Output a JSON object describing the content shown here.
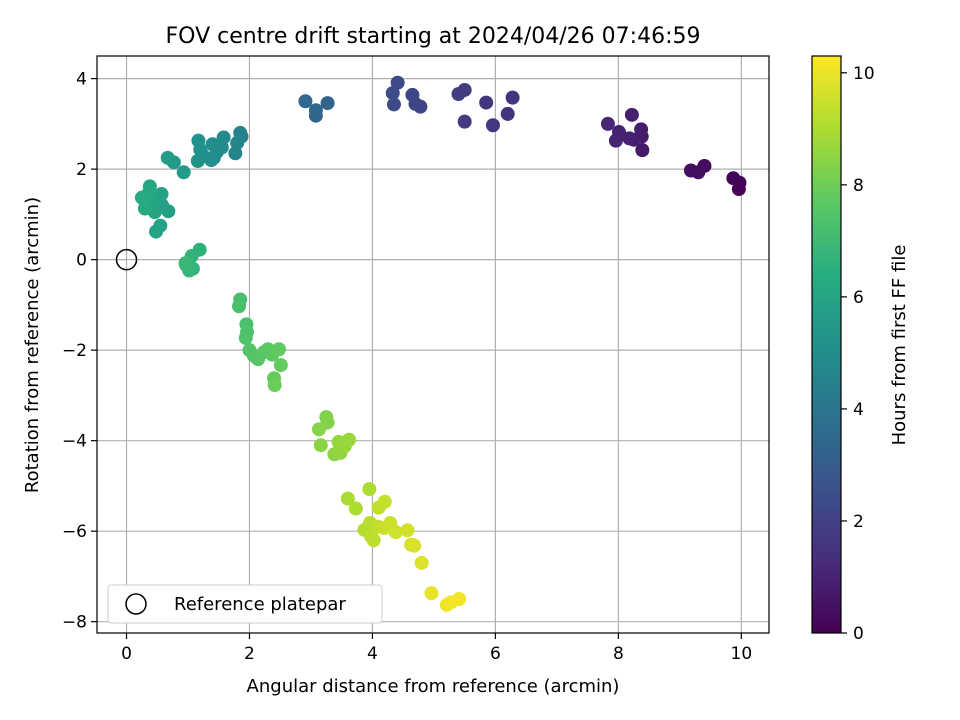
{
  "chart_data": {
    "type": "scatter",
    "title": "FOV centre drift starting at 2024/04/26 07:46:59",
    "xlabel": "Angular distance from reference (arcmin)",
    "ylabel": "Rotation from reference (arcmin)",
    "xlim": [
      -0.48,
      10.45
    ],
    "ylim": [
      -8.25,
      4.5
    ],
    "xticks": [
      0,
      2,
      4,
      6,
      8,
      10
    ],
    "xtick_labels": [
      "0",
      "2",
      "4",
      "6",
      "8",
      "10"
    ],
    "yticks": [
      4,
      2,
      0,
      -2,
      -4,
      -6,
      -8
    ],
    "ytick_labels": [
      "4",
      "2",
      "0",
      "−2",
      "−4",
      "−6",
      "−8"
    ],
    "grid": true,
    "legend": {
      "placement": "lower-left",
      "entries": [
        "Reference platepar"
      ]
    },
    "reference_point": {
      "x": 0,
      "y": 0
    },
    "colorbar": {
      "label": "Hours from first FF file",
      "min": 0,
      "max": 10.3,
      "ticks": [
        0,
        2,
        4,
        6,
        8,
        10
      ],
      "tick_labels": [
        "0",
        "2",
        "4",
        "6",
        "8",
        "10"
      ],
      "colormap": "viridis"
    },
    "series": [
      {
        "color_by": "hours",
        "points": [
          {
            "x": 9.96,
            "y": 1.56,
            "h": 0.05
          },
          {
            "x": 9.97,
            "y": 1.7,
            "h": 0.1
          },
          {
            "x": 9.87,
            "y": 1.8,
            "h": 0.15
          },
          {
            "x": 9.4,
            "y": 2.07,
            "h": 0.3
          },
          {
            "x": 9.3,
            "y": 1.93,
            "h": 0.35
          },
          {
            "x": 9.18,
            "y": 1.97,
            "h": 0.4
          },
          {
            "x": 8.39,
            "y": 2.42,
            "h": 0.7
          },
          {
            "x": 8.38,
            "y": 2.72,
            "h": 0.75
          },
          {
            "x": 8.37,
            "y": 2.88,
            "h": 0.8
          },
          {
            "x": 8.25,
            "y": 2.65,
            "h": 0.85
          },
          {
            "x": 8.22,
            "y": 3.2,
            "h": 0.9
          },
          {
            "x": 8.18,
            "y": 2.68,
            "h": 0.95
          },
          {
            "x": 8.01,
            "y": 2.82,
            "h": 1.0
          },
          {
            "x": 7.96,
            "y": 2.63,
            "h": 1.05
          },
          {
            "x": 7.83,
            "y": 3.0,
            "h": 1.1
          },
          {
            "x": 6.28,
            "y": 3.58,
            "h": 1.5
          },
          {
            "x": 6.2,
            "y": 3.22,
            "h": 1.55
          },
          {
            "x": 5.96,
            "y": 2.97,
            "h": 1.6
          },
          {
            "x": 5.85,
            "y": 3.47,
            "h": 1.65
          },
          {
            "x": 5.5,
            "y": 3.05,
            "h": 1.75
          },
          {
            "x": 5.5,
            "y": 3.75,
            "h": 1.8
          },
          {
            "x": 5.4,
            "y": 3.66,
            "h": 1.85
          },
          {
            "x": 4.78,
            "y": 3.38,
            "h": 2.1
          },
          {
            "x": 4.7,
            "y": 3.44,
            "h": 2.15
          },
          {
            "x": 4.65,
            "y": 3.64,
            "h": 2.2
          },
          {
            "x": 4.41,
            "y": 3.91,
            "h": 2.3
          },
          {
            "x": 4.35,
            "y": 3.43,
            "h": 2.35
          },
          {
            "x": 4.33,
            "y": 3.68,
            "h": 2.4
          },
          {
            "x": 3.27,
            "y": 3.46,
            "h": 3.3
          },
          {
            "x": 3.08,
            "y": 3.3,
            "h": 3.35
          },
          {
            "x": 3.08,
            "y": 3.18,
            "h": 3.4
          },
          {
            "x": 2.91,
            "y": 3.5,
            "h": 3.45
          },
          {
            "x": 1.87,
            "y": 2.72,
            "h": 4.5
          },
          {
            "x": 1.85,
            "y": 2.8,
            "h": 4.55
          },
          {
            "x": 1.8,
            "y": 2.58,
            "h": 4.6
          },
          {
            "x": 1.77,
            "y": 2.35,
            "h": 4.65
          },
          {
            "x": 1.58,
            "y": 2.7,
            "h": 4.8
          },
          {
            "x": 1.55,
            "y": 2.48,
            "h": 4.85
          },
          {
            "x": 1.47,
            "y": 2.38,
            "h": 4.9
          },
          {
            "x": 1.42,
            "y": 2.25,
            "h": 4.95
          },
          {
            "x": 1.4,
            "y": 2.55,
            "h": 5.0
          },
          {
            "x": 1.38,
            "y": 2.2,
            "h": 5.05
          },
          {
            "x": 1.25,
            "y": 2.3,
            "h": 5.1
          },
          {
            "x": 1.2,
            "y": 2.43,
            "h": 5.15
          },
          {
            "x": 1.17,
            "y": 2.63,
            "h": 5.2
          },
          {
            "x": 1.16,
            "y": 2.18,
            "h": 5.25
          },
          {
            "x": 0.93,
            "y": 1.93,
            "h": 5.5
          },
          {
            "x": 0.77,
            "y": 2.15,
            "h": 5.6
          },
          {
            "x": 0.67,
            "y": 2.25,
            "h": 5.65
          },
          {
            "x": 0.68,
            "y": 1.07,
            "h": 5.75
          },
          {
            "x": 0.58,
            "y": 1.2,
            "h": 5.8
          },
          {
            "x": 0.57,
            "y": 1.45,
            "h": 5.85
          },
          {
            "x": 0.55,
            "y": 0.75,
            "h": 5.9
          },
          {
            "x": 0.48,
            "y": 0.62,
            "h": 5.95
          },
          {
            "x": 0.46,
            "y": 1.05,
            "h": 6.0
          },
          {
            "x": 0.42,
            "y": 1.27,
            "h": 6.05
          },
          {
            "x": 0.38,
            "y": 1.62,
            "h": 6.1
          },
          {
            "x": 0.36,
            "y": 1.47,
            "h": 6.15
          },
          {
            "x": 0.3,
            "y": 1.13,
            "h": 6.2
          },
          {
            "x": 0.25,
            "y": 1.37,
            "h": 6.25
          },
          {
            "x": 1.19,
            "y": 0.22,
            "h": 6.6
          },
          {
            "x": 1.06,
            "y": 0.08,
            "h": 6.65
          },
          {
            "x": 1.08,
            "y": -0.2,
            "h": 6.7
          },
          {
            "x": 1.02,
            "y": -0.24,
            "h": 6.75
          },
          {
            "x": 0.97,
            "y": -0.12,
            "h": 6.8
          },
          {
            "x": 0.96,
            "y": -0.08,
            "h": 6.85
          },
          {
            "x": 1.85,
            "y": -0.88,
            "h": 7.2
          },
          {
            "x": 1.83,
            "y": -1.03,
            "h": 7.25
          },
          {
            "x": 1.95,
            "y": -1.43,
            "h": 7.3
          },
          {
            "x": 1.96,
            "y": -1.6,
            "h": 7.35
          },
          {
            "x": 1.94,
            "y": -1.73,
            "h": 7.4
          },
          {
            "x": 2.0,
            "y": -2.0,
            "h": 7.45
          },
          {
            "x": 2.07,
            "y": -2.12,
            "h": 7.5
          },
          {
            "x": 2.14,
            "y": -2.2,
            "h": 7.55
          },
          {
            "x": 2.23,
            "y": -2.05,
            "h": 7.6
          },
          {
            "x": 2.3,
            "y": -1.98,
            "h": 7.65
          },
          {
            "x": 2.37,
            "y": -2.1,
            "h": 7.7
          },
          {
            "x": 2.48,
            "y": -1.98,
            "h": 7.75
          },
          {
            "x": 2.51,
            "y": -2.33,
            "h": 7.8
          },
          {
            "x": 2.4,
            "y": -2.62,
            "h": 7.85
          },
          {
            "x": 2.41,
            "y": -2.77,
            "h": 7.9
          },
          {
            "x": 3.25,
            "y": -3.48,
            "h": 8.3
          },
          {
            "x": 3.27,
            "y": -3.6,
            "h": 8.35
          },
          {
            "x": 3.13,
            "y": -3.75,
            "h": 8.4
          },
          {
            "x": 3.16,
            "y": -4.1,
            "h": 8.45
          },
          {
            "x": 3.38,
            "y": -4.3,
            "h": 8.5
          },
          {
            "x": 3.48,
            "y": -4.27,
            "h": 8.55
          },
          {
            "x": 3.45,
            "y": -4.03,
            "h": 8.6
          },
          {
            "x": 3.55,
            "y": -4.12,
            "h": 8.65
          },
          {
            "x": 3.62,
            "y": -3.98,
            "h": 8.7
          },
          {
            "x": 3.6,
            "y": -5.28,
            "h": 8.95
          },
          {
            "x": 3.73,
            "y": -5.5,
            "h": 9.0
          },
          {
            "x": 3.95,
            "y": -5.07,
            "h": 9.05
          },
          {
            "x": 3.87,
            "y": -5.97,
            "h": 9.1
          },
          {
            "x": 3.96,
            "y": -5.82,
            "h": 9.15
          },
          {
            "x": 3.98,
            "y": -6.12,
            "h": 9.2
          },
          {
            "x": 4.02,
            "y": -6.2,
            "h": 9.25
          },
          {
            "x": 4.09,
            "y": -5.9,
            "h": 9.3
          },
          {
            "x": 4.1,
            "y": -5.48,
            "h": 9.35
          },
          {
            "x": 4.2,
            "y": -5.35,
            "h": 9.4
          },
          {
            "x": 4.19,
            "y": -5.93,
            "h": 9.45
          },
          {
            "x": 4.29,
            "y": -5.82,
            "h": 9.5
          },
          {
            "x": 4.38,
            "y": -6.02,
            "h": 9.55
          },
          {
            "x": 4.57,
            "y": -5.98,
            "h": 9.6
          },
          {
            "x": 4.63,
            "y": -6.3,
            "h": 9.65
          },
          {
            "x": 4.68,
            "y": -6.32,
            "h": 9.7
          },
          {
            "x": 4.8,
            "y": -6.7,
            "h": 9.75
          },
          {
            "x": 4.96,
            "y": -7.37,
            "h": 9.95
          },
          {
            "x": 5.21,
            "y": -7.63,
            "h": 10.05
          },
          {
            "x": 5.28,
            "y": -7.57,
            "h": 10.1
          },
          {
            "x": 5.41,
            "y": -7.5,
            "h": 10.15
          }
        ]
      }
    ]
  }
}
